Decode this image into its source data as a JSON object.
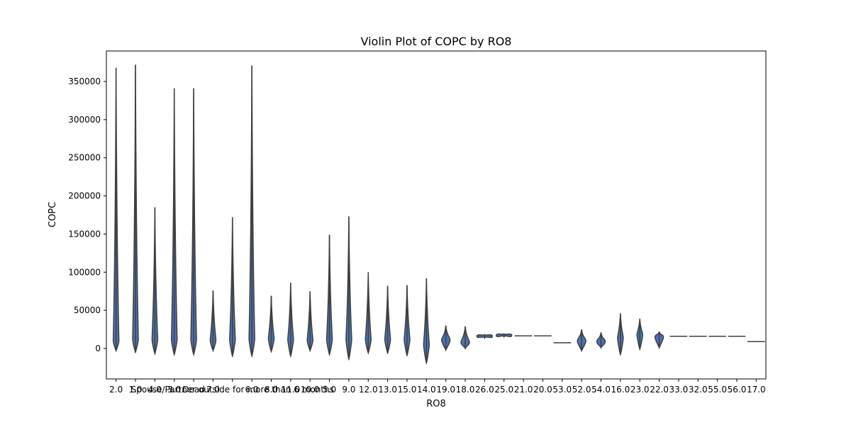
{
  "chart_data": {
    "type": "violin",
    "title": "Violin Plot of COPC by RO8",
    "xlabel": "RO8",
    "ylabel": "COPC",
    "ylim": [
      -40000,
      390000
    ],
    "yticks": [
      0,
      50000,
      100000,
      150000,
      200000,
      250000,
      300000,
      350000
    ],
    "ytick_labels": [
      "0",
      "50000",
      "100000",
      "150000",
      "200000",
      "250000",
      "300000",
      "350000"
    ],
    "grid": false,
    "legend": "none",
    "colors": {
      "violin_fill": "#4c72b0",
      "violin_edge": "#3f3f3f",
      "axis": "#000000"
    },
    "categories": [
      "2.0",
      "1.0",
      "4.0",
      "3.0",
      "Dead",
      "7.0",
      "Spouse/Partner outside for more than 6 months",
      "6.0",
      "8.0",
      "11.0",
      "10.0",
      "5.0",
      "9.0",
      "12.0",
      "13.0",
      "15.0",
      "14.0",
      "19.0",
      "18.0",
      "26.0",
      "25.0",
      "21.0",
      "20.0",
      "53.0",
      "52.0",
      "54.0",
      "16.0",
      "23.0",
      "22.0",
      "33.0",
      "32.0",
      "55.0",
      "56.0",
      "17.0"
    ],
    "violins": [
      {
        "category": "2.0",
        "min": -3000,
        "max": 368000,
        "median": 10000
      },
      {
        "category": "1.0",
        "min": -5000,
        "max": 372000,
        "median": 12000
      },
      {
        "category": "4.0",
        "min": -7000,
        "max": 185000,
        "median": 12000
      },
      {
        "category": "3.0",
        "min": -8000,
        "max": 341000,
        "median": 12000
      },
      {
        "category": "Dead",
        "min": -8000,
        "max": 341000,
        "median": 12000
      },
      {
        "category": "7.0",
        "min": -3000,
        "max": 76000,
        "median": 11000
      },
      {
        "category": "Spouse/Partner outside for more than 6 months",
        "min": -10000,
        "max": 172000,
        "median": 12000
      },
      {
        "category": "6.0",
        "min": -10000,
        "max": 371000,
        "median": 13000
      },
      {
        "category": "8.0",
        "min": -4000,
        "max": 69000,
        "median": 13000
      },
      {
        "category": "11.0",
        "min": -10000,
        "max": 86000,
        "median": 12000
      },
      {
        "category": "10.0",
        "min": -3000,
        "max": 75000,
        "median": 11000
      },
      {
        "category": "5.0",
        "min": -8000,
        "max": 149000,
        "median": 12000
      },
      {
        "category": "9.0",
        "min": -14000,
        "max": 173000,
        "median": 12000
      },
      {
        "category": "12.0",
        "min": -6000,
        "max": 100000,
        "median": 12000
      },
      {
        "category": "13.0",
        "min": -6000,
        "max": 82000,
        "median": 12000
      },
      {
        "category": "15.0",
        "min": -9000,
        "max": 83000,
        "median": 12000
      },
      {
        "category": "14.0",
        "min": -19000,
        "max": 92000,
        "median": 5000
      },
      {
        "category": "19.0",
        "min": -2000,
        "max": 30000,
        "median": 11000
      },
      {
        "category": "18.0",
        "min": 0,
        "max": 29000,
        "median": 8000
      },
      {
        "category": "26.0",
        "min": 14000,
        "max": 18000,
        "median": 16000
      },
      {
        "category": "25.0",
        "min": 15500,
        "max": 19000,
        "median": 17000
      },
      {
        "category": "21.0",
        "min": 16500,
        "max": 16500,
        "median": 16500
      },
      {
        "category": "20.0",
        "min": 16500,
        "max": 16500,
        "median": 16500
      },
      {
        "category": "53.0",
        "min": 7500,
        "max": 7500,
        "median": 7500
      },
      {
        "category": "52.0",
        "min": -3000,
        "max": 25000,
        "median": 10000
      },
      {
        "category": "54.0",
        "min": 1000,
        "max": 21000,
        "median": 9000
      },
      {
        "category": "16.0",
        "min": -8000,
        "max": 46000,
        "median": 14000
      },
      {
        "category": "23.0",
        "min": -1000,
        "max": 39000,
        "median": 18000
      },
      {
        "category": "22.0",
        "min": 1000,
        "max": 22000,
        "median": 15000
      },
      {
        "category": "33.0",
        "min": 16000,
        "max": 16000,
        "median": 16000
      },
      {
        "category": "32.0",
        "min": 16000,
        "max": 16000,
        "median": 16000
      },
      {
        "category": "55.0",
        "min": 16000,
        "max": 16000,
        "median": 16000
      },
      {
        "category": "56.0",
        "min": 16000,
        "max": 16000,
        "median": 16000
      },
      {
        "category": "17.0",
        "min": 9000,
        "max": 9000,
        "median": 9000
      }
    ]
  }
}
